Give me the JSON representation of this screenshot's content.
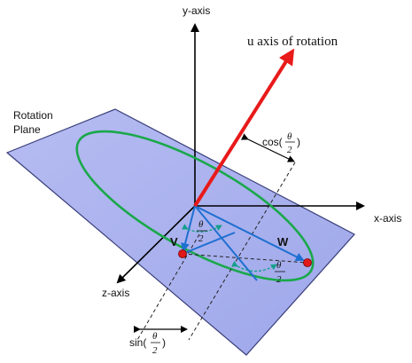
{
  "labels": {
    "y_axis": "y-axis",
    "x_axis": "x-axis",
    "z_axis": "z-axis",
    "rotation_axis": "u axis of rotation",
    "rotation_plane_line1": "Rotation",
    "rotation_plane_line2": "Plane",
    "point_v": "V",
    "point_w": "W",
    "cos_prefix": "cos(",
    "sin_prefix": "sin(",
    "close_paren": ")",
    "theta": "θ",
    "two": "2"
  },
  "colors": {
    "plane_fill": "#a9b1ee",
    "plane_stroke": "#3a3f7a",
    "ellipse": "#1aa84a",
    "rotation_axis": "#e81a1a",
    "vectors": "#1e6fd1",
    "points": "#e01818",
    "angle_arcs": "#14a08a"
  }
}
